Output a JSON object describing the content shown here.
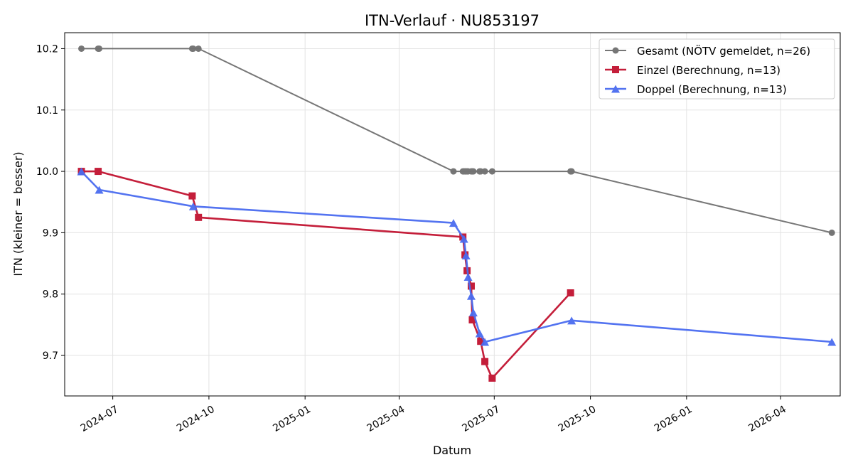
{
  "chart_data": {
    "type": "line",
    "title": "ITN-Verlauf · NU853197",
    "xlabel": "Datum",
    "ylabel": "ITN  (kleiner = besser)",
    "xlim": [
      "2024-05-16",
      "2026-05-28"
    ],
    "ylim": [
      9.634,
      10.226
    ],
    "x_ticks": [
      "2024-07-01",
      "2024-10-01",
      "2025-01-01",
      "2025-04-01",
      "2025-07-01",
      "2025-10-01",
      "2026-01-01",
      "2026-04-01"
    ],
    "x_tick_labels": [
      "2024-07",
      "2024-10",
      "2025-01",
      "2025-04",
      "2025-07",
      "2025-10",
      "2026-01",
      "2026-04"
    ],
    "y_ticks": [
      9.7,
      9.8,
      9.9,
      10.0,
      10.1,
      10.2
    ],
    "y_tick_labels": [
      "9.7",
      "9.8",
      "9.9",
      "10.0",
      "10.1",
      "10.2"
    ],
    "grid": true,
    "legend_position": "top-right",
    "series": [
      {
        "name": "Gesamt (NÖTV gemeldet, n=26)",
        "color": "#555555",
        "marker": "circle",
        "points": [
          {
            "x": "2024-06-01",
            "y": 10.2
          },
          {
            "x": "2024-06-17",
            "y": 10.2
          },
          {
            "x": "2024-06-18",
            "y": 10.2
          },
          {
            "x": "2024-09-15",
            "y": 10.2
          },
          {
            "x": "2024-09-16",
            "y": 10.2
          },
          {
            "x": "2024-09-21",
            "y": 10.2
          },
          {
            "x": "2025-05-23",
            "y": 10.0
          },
          {
            "x": "2025-06-01",
            "y": 10.0
          },
          {
            "x": "2025-06-02",
            "y": 10.0
          },
          {
            "x": "2025-06-03",
            "y": 10.0
          },
          {
            "x": "2025-06-04",
            "y": 10.0
          },
          {
            "x": "2025-06-05",
            "y": 10.0
          },
          {
            "x": "2025-06-06",
            "y": 10.0
          },
          {
            "x": "2025-06-09",
            "y": 10.0
          },
          {
            "x": "2025-06-10",
            "y": 10.0
          },
          {
            "x": "2025-06-11",
            "y": 10.0
          },
          {
            "x": "2025-06-17",
            "y": 10.0
          },
          {
            "x": "2025-06-18",
            "y": 10.0
          },
          {
            "x": "2025-06-22",
            "y": 10.0
          },
          {
            "x": "2025-06-29",
            "y": 10.0
          },
          {
            "x": "2025-09-12",
            "y": 10.0
          },
          {
            "x": "2025-09-13",
            "y": 10.0
          },
          {
            "x": "2026-05-20",
            "y": 9.9
          }
        ]
      },
      {
        "name": "Einzel (Berechnung, n=13)",
        "color": "#c41e3a",
        "marker": "square",
        "points": [
          {
            "x": "2024-06-01",
            "y": 10.0
          },
          {
            "x": "2024-06-17",
            "y": 10.0
          },
          {
            "x": "2024-09-15",
            "y": 9.96
          },
          {
            "x": "2024-09-21",
            "y": 9.925
          },
          {
            "x": "2025-06-01",
            "y": 9.893
          },
          {
            "x": "2025-06-03",
            "y": 9.864
          },
          {
            "x": "2025-06-05",
            "y": 9.838
          },
          {
            "x": "2025-06-09",
            "y": 9.813
          },
          {
            "x": "2025-06-10",
            "y": 9.758
          },
          {
            "x": "2025-06-18",
            "y": 9.723
          },
          {
            "x": "2025-06-22",
            "y": 9.69
          },
          {
            "x": "2025-06-29",
            "y": 9.663
          },
          {
            "x": "2025-09-12",
            "y": 9.802
          }
        ]
      },
      {
        "name": "Doppel (Berechnung, n=13)",
        "color": "#4a6cf0",
        "marker": "triangle",
        "points": [
          {
            "x": "2024-06-01",
            "y": 10.0
          },
          {
            "x": "2024-06-18",
            "y": 9.97
          },
          {
            "x": "2024-09-16",
            "y": 9.943
          },
          {
            "x": "2025-05-23",
            "y": 9.916
          },
          {
            "x": "2025-06-02",
            "y": 9.89
          },
          {
            "x": "2025-06-04",
            "y": 9.863
          },
          {
            "x": "2025-06-06",
            "y": 9.828
          },
          {
            "x": "2025-06-09",
            "y": 9.797
          },
          {
            "x": "2025-06-11",
            "y": 9.77
          },
          {
            "x": "2025-06-17",
            "y": 9.736
          },
          {
            "x": "2025-06-22",
            "y": 9.722
          },
          {
            "x": "2025-09-13",
            "y": 9.757
          },
          {
            "x": "2026-05-20",
            "y": 9.722
          }
        ]
      }
    ]
  }
}
